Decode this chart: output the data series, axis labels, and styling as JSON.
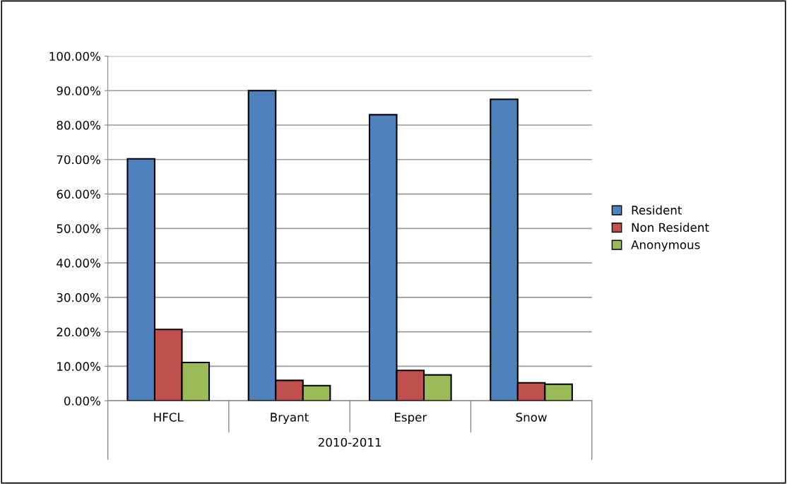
{
  "chart_data": {
    "type": "bar",
    "categories": [
      "HFCL",
      "Bryant",
      "Esper",
      "Snow"
    ],
    "xlabel": "2010-2011",
    "series": [
      {
        "name": "Resident",
        "color": "#4f81bd",
        "values": [
          70.2,
          90.0,
          83.0,
          87.5
        ]
      },
      {
        "name": "Non Resident",
        "color": "#c0504d",
        "values": [
          20.7,
          5.9,
          8.8,
          5.2
        ]
      },
      {
        "name": "Anonymous",
        "color": "#9bbb59",
        "values": [
          11.1,
          4.4,
          7.5,
          4.8
        ]
      }
    ],
    "ylim": [
      0,
      100
    ],
    "yticks": [
      {
        "value": 0,
        "label": "0.00%"
      },
      {
        "value": 10,
        "label": "10.00%"
      },
      {
        "value": 20,
        "label": "20.00%"
      },
      {
        "value": 30,
        "label": "30.00%"
      },
      {
        "value": 40,
        "label": "40.00%"
      },
      {
        "value": 50,
        "label": "50.00%"
      },
      {
        "value": 60,
        "label": "60.00%"
      },
      {
        "value": 70,
        "label": "70.00%"
      },
      {
        "value": 80,
        "label": "80.00%"
      },
      {
        "value": 90,
        "label": "90.00%"
      },
      {
        "value": 100,
        "label": "100.00%"
      }
    ],
    "grid": "y",
    "legend": "right"
  }
}
